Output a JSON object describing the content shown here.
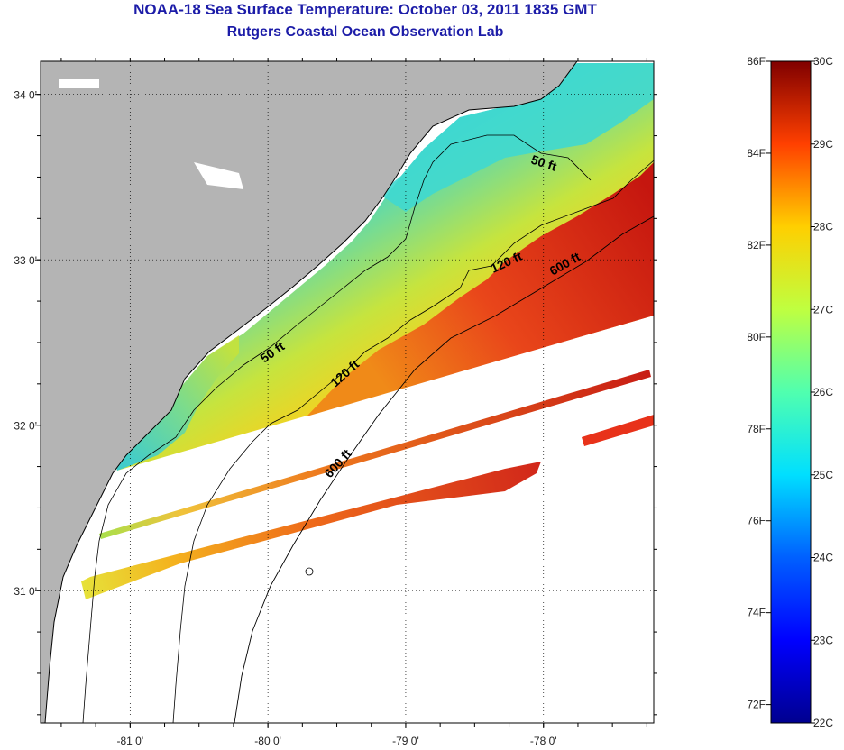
{
  "title": "NOAA-18 Sea Surface Temperature:  October 03, 2011 1835 GMT",
  "subtitle": "Rutgers Coastal Ocean Observation Lab",
  "colors": {
    "land": "#b4b4b4",
    "title": "#1c1ca8",
    "no_data": "#ffffff",
    "contour": "#000000"
  },
  "map": {
    "lon_range": [
      -81.65,
      -77.2
    ],
    "lat_range": [
      30.2,
      34.2
    ],
    "lon_ticks": [
      {
        "value": -81,
        "label": "-81 0'"
      },
      {
        "value": -80,
        "label": "-80 0'"
      },
      {
        "value": -79,
        "label": "-79 0'"
      },
      {
        "value": -78,
        "label": "-78 0'"
      }
    ],
    "lat_ticks": [
      {
        "value": 34,
        "label": "34 0'"
      },
      {
        "value": 33,
        "label": "33 0'"
      },
      {
        "value": 32,
        "label": "32 0'"
      },
      {
        "value": 31,
        "label": "31 0'"
      }
    ],
    "grid": "dotted"
  },
  "contours": [
    {
      "label": "50 ft"
    },
    {
      "label": "50 ft"
    },
    {
      "label": "120 ft"
    },
    {
      "label": "120 ft"
    },
    {
      "label": "600 ft"
    },
    {
      "label": "600 ft"
    }
  ],
  "colorbar": {
    "celsius_range": [
      22,
      30
    ],
    "fahrenheit_range": [
      72,
      86
    ],
    "celsius_labels": [
      "30C",
      "29C",
      "28C",
      "27C",
      "26C",
      "25C",
      "24C",
      "23C",
      "22C"
    ],
    "celsius_values": [
      30,
      29,
      28,
      27,
      26,
      25,
      24,
      23,
      22
    ],
    "fahrenheit_labels": [
      "86F",
      "84F",
      "82F",
      "80F",
      "78F",
      "76F",
      "74F",
      "72F"
    ],
    "fahrenheit_values": [
      86,
      84,
      82,
      80,
      78,
      76,
      74,
      72
    ]
  }
}
